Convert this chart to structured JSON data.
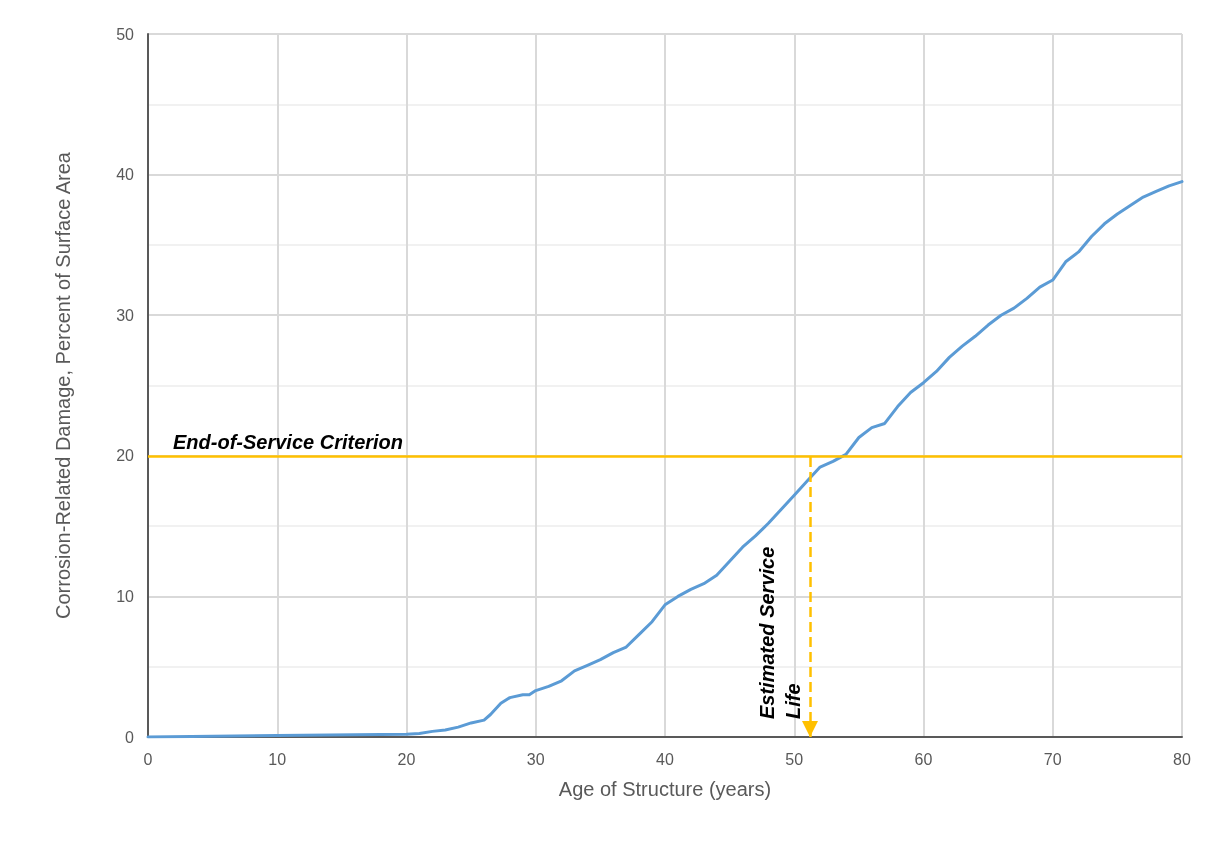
{
  "chart_data": {
    "type": "line",
    "xlabel": "Age of Structure (years)",
    "ylabel": "Corrosion-Related Damage, Percent of Surface Area",
    "xlim": [
      0,
      80
    ],
    "xticks": [
      0,
      10,
      20,
      30,
      40,
      50,
      60,
      70,
      80
    ],
    "ylim": [
      0,
      50
    ],
    "yticks": [
      0,
      10,
      20,
      30,
      40,
      50
    ],
    "grid": true,
    "marker": "none",
    "line_style": "solid",
    "series": [
      {
        "color": "#5b9bd5",
        "x": [
          0,
          10,
          20,
          21,
          22,
          23,
          24,
          25,
          26,
          26.5,
          27.3,
          28,
          29,
          29.5,
          30,
          31,
          32,
          33,
          34,
          35,
          36,
          37,
          38,
          39,
          40,
          41,
          42,
          43,
          44,
          45,
          46,
          47,
          48,
          49,
          50,
          51,
          52,
          53,
          54,
          55,
          56,
          57,
          58,
          59,
          60,
          61,
          62,
          63,
          64,
          65,
          66,
          67,
          68,
          69,
          70,
          71,
          72,
          73,
          74,
          75,
          76,
          77,
          78,
          79,
          80
        ],
        "values": [
          0,
          0.1,
          0.2,
          0.25,
          0.4,
          0.5,
          0.7,
          1.0,
          1.2,
          1.6,
          2.4,
          2.8,
          3.0,
          3.0,
          3.3,
          3.6,
          4.0,
          4.7,
          5.1,
          5.5,
          6.0,
          6.4,
          7.3,
          8.2,
          9.4,
          10.0,
          10.5,
          10.9,
          11.5,
          12.5,
          13.5,
          14.3,
          15.2,
          16.2,
          17.2,
          18.2,
          19.2,
          19.6,
          20.1,
          21.3,
          22.0,
          22.3,
          23.5,
          24.5,
          25.2,
          26.0,
          27.0,
          27.8,
          28.5,
          29.3,
          30.0,
          30.5,
          31.2,
          32.0,
          32.5,
          33.8,
          34.5,
          35.6,
          36.5,
          37.2,
          37.8,
          38.4,
          38.8,
          39.2,
          39.5
        ]
      }
    ],
    "ref_lines": [
      {
        "axis": "y",
        "value": 20,
        "label": "End-of-Service Criterion",
        "color": "#ffc000",
        "line_style": "solid"
      },
      {
        "axis": "x",
        "value": 51.2,
        "label": "Estimated Service Life",
        "color": "#ffc000",
        "line_style": "dashed"
      }
    ]
  }
}
